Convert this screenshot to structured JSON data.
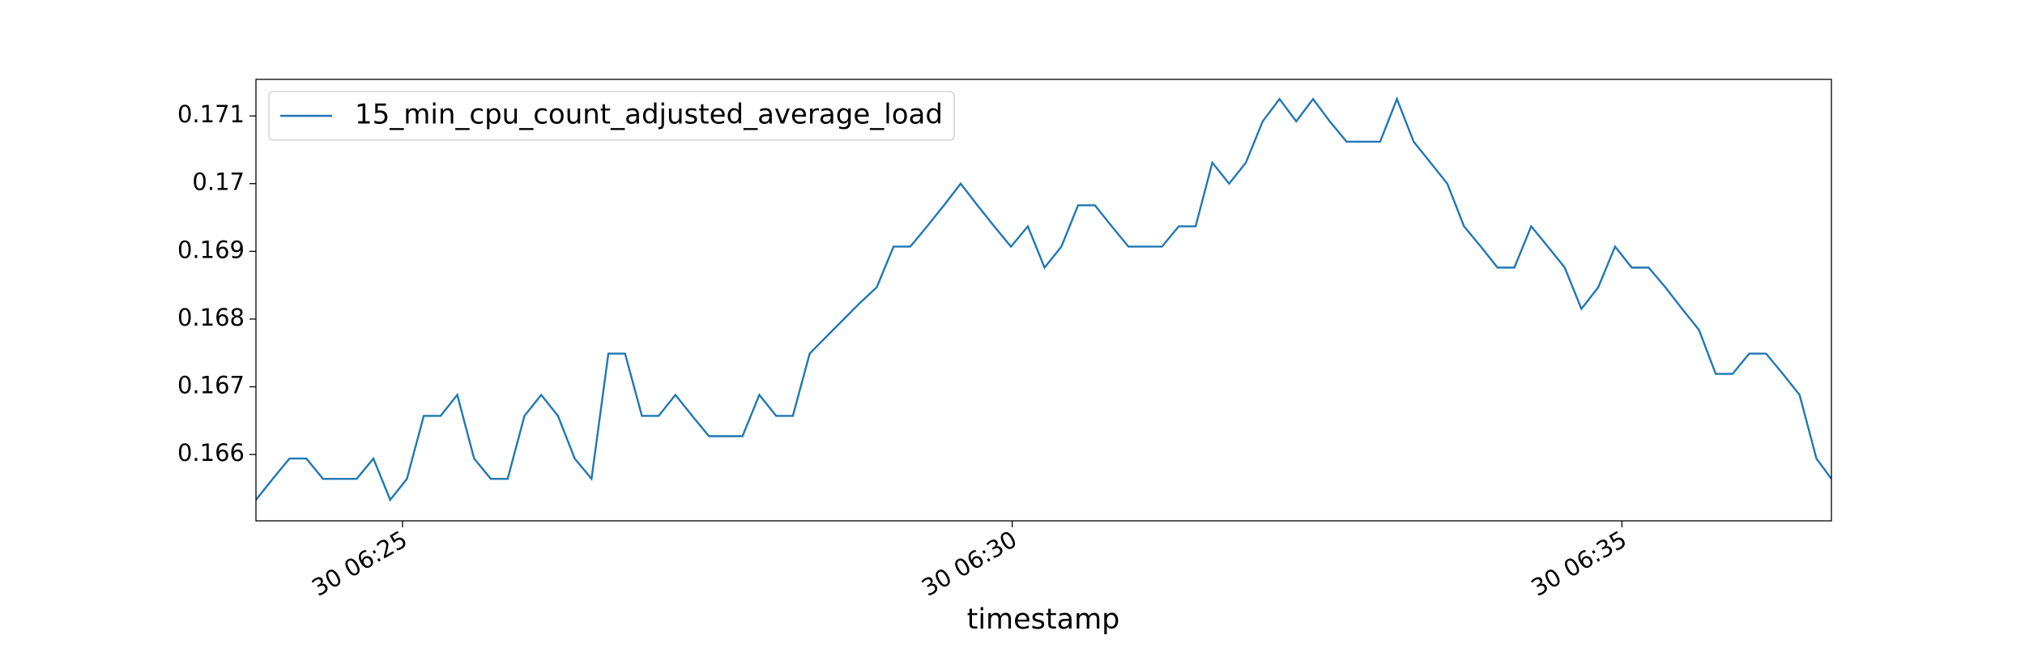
{
  "chart_data": {
    "type": "line",
    "xlabel": "timestamp",
    "legend": "upper left",
    "grid": false,
    "x": [
      23.798,
      23.936,
      24.073,
      24.211,
      24.348,
      24.486,
      24.624,
      24.761,
      24.899,
      25.036,
      25.174,
      25.312,
      25.449,
      25.587,
      25.724,
      25.862,
      26,
      26.137,
      26.275,
      26.412,
      26.55,
      26.688,
      26.825,
      26.963,
      27.1,
      27.238,
      27.376,
      27.513,
      27.651,
      27.788,
      27.926,
      28.064,
      28.201,
      28.339,
      28.476,
      28.614,
      28.752,
      28.889,
      29.027,
      29.164,
      29.302,
      29.44,
      29.577,
      29.715,
      29.852,
      29.99,
      30.128,
      30.265,
      30.403,
      30.54,
      30.678,
      30.816,
      30.953,
      31.091,
      31.228,
      31.366,
      31.504,
      31.641,
      31.779,
      31.916,
      32.054,
      32.192,
      32.329,
      32.467,
      32.604,
      32.742,
      32.88,
      33.017,
      33.155,
      33.292,
      33.43,
      33.568,
      33.705,
      33.843,
      33.98,
      34.118,
      34.256,
      34.393,
      34.531,
      34.668,
      34.806,
      34.944,
      35.081,
      35.219,
      35.356,
      35.494,
      35.632,
      35.769,
      35.907,
      36.044,
      36.182,
      36.32,
      36.457,
      36.595,
      36.718
    ],
    "series": [
      {
        "name": "15_min_cpu_count_adjusted_average_load",
        "color": "#1f77b4",
        "values": [
          0.16533,
          0.16564,
          0.16594,
          0.16594,
          0.16564,
          0.16564,
          0.16564,
          0.16594,
          0.16533,
          0.16564,
          0.16657,
          0.16657,
          0.16688,
          0.16594,
          0.16564,
          0.16564,
          0.16657,
          0.16688,
          0.16657,
          0.16594,
          0.16564,
          0.16749,
          0.16749,
          0.16657,
          0.16657,
          0.16688,
          0.16657,
          0.16627,
          0.16627,
          0.16627,
          0.16688,
          0.16657,
          0.16657,
          0.16749,
          0.16774,
          0.16799,
          0.16824,
          0.16847,
          0.16907,
          0.16907,
          0.16937,
          0.16968,
          0.17,
          0.16968,
          0.16937,
          0.16907,
          0.16937,
          0.16876,
          0.16907,
          0.16968,
          0.16968,
          0.16937,
          0.16907,
          0.16907,
          0.16907,
          0.16937,
          0.16937,
          0.17031,
          0.17,
          0.17031,
          0.17092,
          0.17125,
          0.17092,
          0.17125,
          0.17092,
          0.17062,
          0.17062,
          0.17062,
          0.17125,
          0.17062,
          0.17031,
          0.17,
          0.16937,
          0.16907,
          0.16876,
          0.16876,
          0.16937,
          0.16907,
          0.16876,
          0.16815,
          0.16847,
          0.16907,
          0.16876,
          0.16876,
          0.16847,
          0.16815,
          0.16784,
          0.16719,
          0.16719,
          0.16749,
          0.16749,
          0.16719,
          0.16688,
          0.16594,
          0.16564
        ]
      }
    ],
    "xlim": [
      23.798,
      36.718
    ],
    "xticks": [
      {
        "value": 25,
        "label": "30 06:25"
      },
      {
        "value": 30,
        "label": "30 06:30"
      },
      {
        "value": 35,
        "label": "30 06:35"
      }
    ],
    "ylim": [
      0.16502,
      0.17154
    ],
    "yticks": [
      0.166,
      0.167,
      0.168,
      0.169,
      0.17,
      0.171
    ]
  }
}
